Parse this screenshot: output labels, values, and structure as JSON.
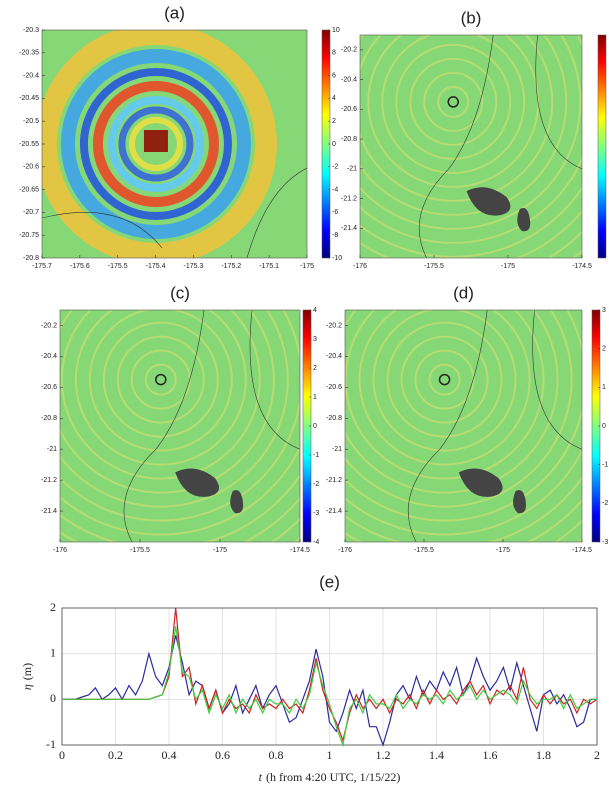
{
  "chart_data": [
    {
      "type": "map",
      "title": "(a)",
      "xlim": [
        -175.7,
        -175
      ],
      "ylim": [
        -20.8,
        -20.3
      ],
      "xticks": [
        -175.7,
        -175.6,
        -175.5,
        -175.4,
        -175.3,
        -175.2,
        -175.1,
        -175
      ],
      "yticks": [
        -20.3,
        -20.35,
        -20.4,
        -20.45,
        -20.5,
        -20.55,
        -20.6,
        -20.65,
        -20.7,
        -20.75,
        -20.8
      ],
      "clim": [
        -10,
        10
      ],
      "cticks": [
        10,
        8,
        6,
        4,
        2,
        0,
        -2,
        -4,
        -6,
        -8,
        -10
      ]
    },
    {
      "type": "map",
      "title": "(b)",
      "xlim": [
        -176,
        -174.5
      ],
      "ylim": [
        -21.6,
        -20.1
      ],
      "xticks": [
        -176,
        -175.5,
        -175,
        -174.5
      ],
      "yticks": [
        -20.2,
        -20.4,
        -20.6,
        -20.8,
        -21,
        -21.2,
        -21.4
      ]
    },
    {
      "type": "map",
      "title": "(c)",
      "xlim": [
        -176,
        -174.5
      ],
      "ylim": [
        -21.6,
        -20.1
      ],
      "xticks": [
        -176,
        -175.5,
        -175,
        -174.5
      ],
      "yticks": [
        -20.2,
        -20.4,
        -20.6,
        -20.8,
        -21,
        -21.2,
        -21.4
      ],
      "clim": [
        -4,
        4
      ],
      "cticks": [
        4,
        3,
        2,
        1,
        0,
        -1,
        -2,
        -3,
        -4
      ]
    },
    {
      "type": "map",
      "title": "(d)",
      "xlim": [
        -176,
        -174.5
      ],
      "ylim": [
        -21.6,
        -20.1
      ],
      "xticks": [
        -176,
        -175.5,
        -175,
        -174.5
      ],
      "yticks": [
        -20.2,
        -20.4,
        -20.6,
        -20.8,
        -21,
        -21.2,
        -21.4
      ],
      "clim": [
        -3,
        3
      ],
      "cticks": [
        3,
        2,
        1,
        0,
        -1,
        -2,
        -3
      ]
    },
    {
      "type": "line",
      "title": "(e)",
      "xlabel_var": "t",
      "xlabel": "(h from 4:20 UTC, 1/15/22)",
      "ylabel_var": "η",
      "ylabel": "(m)",
      "xlim": [
        0,
        2
      ],
      "ylim": [
        -1,
        2
      ],
      "xticks": [
        0,
        0.2,
        0.4,
        0.6,
        0.8,
        1,
        1.2,
        1.4,
        1.6,
        1.8,
        2
      ],
      "yticks": [
        -1,
        0,
        1,
        2
      ],
      "grid": true,
      "x": [
        0,
        0.025,
        0.05,
        0.075,
        0.1,
        0.125,
        0.15,
        0.175,
        0.2,
        0.225,
        0.25,
        0.275,
        0.3,
        0.325,
        0.35,
        0.375,
        0.4,
        0.425,
        0.45,
        0.475,
        0.5,
        0.525,
        0.55,
        0.575,
        0.6,
        0.625,
        0.65,
        0.675,
        0.7,
        0.725,
        0.75,
        0.775,
        0.8,
        0.825,
        0.85,
        0.875,
        0.9,
        0.925,
        0.95,
        0.975,
        1,
        1.025,
        1.05,
        1.075,
        1.1,
        1.125,
        1.15,
        1.175,
        1.2,
        1.225,
        1.25,
        1.275,
        1.3,
        1.325,
        1.35,
        1.375,
        1.4,
        1.425,
        1.45,
        1.475,
        1.5,
        1.525,
        1.55,
        1.575,
        1.6,
        1.625,
        1.65,
        1.675,
        1.7,
        1.725,
        1.75,
        1.775,
        1.8,
        1.825,
        1.85,
        1.875,
        1.9,
        1.925,
        1.95,
        1.975,
        2
      ],
      "series": [
        {
          "color": "#2b2b9e",
          "values": [
            0,
            0,
            0,
            0.05,
            0.1,
            0.25,
            0,
            0.1,
            0.25,
            0,
            0.3,
            0.1,
            0.4,
            1.0,
            0.5,
            0.3,
            0.7,
            1.4,
            0.8,
            0.1,
            0.4,
            0.3,
            -0.2,
            0.2,
            -0.3,
            -0.1,
            0.3,
            -0.3,
            0,
            0.3,
            -0.2,
            0.1,
            0.3,
            -0.1,
            -0.5,
            -0.4,
            0,
            0.4,
            1.1,
            0.5,
            -0.5,
            -0.7,
            -0.3,
            0.2,
            -0.2,
            0.2,
            -0.6,
            -0.6,
            -1.0,
            -0.5,
            0.1,
            0.3,
            0,
            0.5,
            0.1,
            0.4,
            0.2,
            0.6,
            0.3,
            0.7,
            0.1,
            0.4,
            0.9,
            0.5,
            0.2,
            0.4,
            0.7,
            0.2,
            0.8,
            0.3,
            -0.2,
            -0.7,
            0.1,
            0.2,
            -0.1,
            0.1,
            -0.2,
            -0.6,
            -0.5,
            0,
            0
          ]
        },
        {
          "color": "#cc2222",
          "values": [
            0,
            0,
            0,
            0,
            0,
            0,
            0,
            0,
            0,
            0,
            0,
            0,
            0,
            0,
            0.05,
            0.1,
            0.5,
            2.0,
            0.5,
            0.7,
            -0.1,
            0.3,
            -0.2,
            0.2,
            -0.3,
            0,
            -0.2,
            -0.1,
            -0.3,
            0.1,
            -0.2,
            -0.1,
            -0.2,
            0,
            -0.2,
            -0.1,
            -0.3,
            0.2,
            0.9,
            0.2,
            -0.2,
            -0.5,
            -0.9,
            -0.3,
            0.1,
            -0.2,
            0,
            -0.2,
            0,
            -0.3,
            0,
            -0.1,
            0.1,
            -0.2,
            0.2,
            -0.1,
            0.2,
            0,
            0.1,
            -0.1,
            0.2,
            0.4,
            0.1,
            0.3,
            -0.1,
            0.2,
            0.1,
            0.3,
            0,
            0.7,
            0,
            -0.2,
            0.1,
            -0.1,
            0.1,
            -0.1,
            0,
            -0.3,
            0,
            -0.1,
            0
          ]
        },
        {
          "color": "#3fcc3f",
          "values": [
            0,
            0,
            0,
            0,
            0,
            0,
            0,
            0,
            0,
            0,
            0,
            0,
            0,
            0,
            0.05,
            0.1,
            0.6,
            1.6,
            0.6,
            0.5,
            0,
            0.2,
            -0.3,
            0.1,
            -0.2,
            0.1,
            -0.3,
            0,
            -0.2,
            0,
            -0.3,
            0,
            -0.1,
            -0.1,
            -0.3,
            0,
            -0.2,
            0.1,
            0.8,
            0.3,
            -0.1,
            -0.6,
            -1.0,
            -0.2,
            0,
            -0.3,
            0.1,
            -0.1,
            -0.1,
            -0.2,
            0.1,
            -0.2,
            0,
            -0.1,
            0.1,
            0,
            0.1,
            -0.1,
            0.2,
            0,
            0.1,
            0.3,
            0,
            0.2,
            0,
            0.1,
            0.2,
            0.1,
            -0.1,
            0.4,
            0.1,
            -0.1,
            0,
            0,
            0.1,
            -0.2,
            0.1,
            -0.2,
            -0.1,
            0,
            0
          ]
        }
      ]
    }
  ]
}
